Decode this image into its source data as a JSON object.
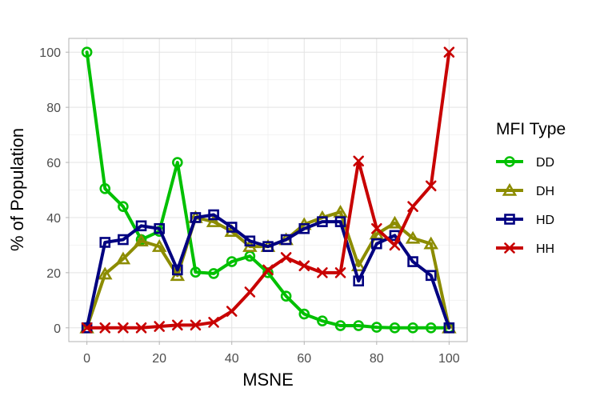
{
  "chart_data": {
    "type": "line",
    "title": "",
    "xlabel": "MSNE",
    "ylabel": "% of Population",
    "xlim": [
      -5,
      105
    ],
    "ylim": [
      -5,
      105
    ],
    "xticks": [
      0,
      20,
      40,
      60,
      80,
      100
    ],
    "yticks": [
      0,
      20,
      40,
      60,
      80,
      100
    ],
    "grid": true,
    "legend_title": "MFI Type",
    "legend_position": "right",
    "x": [
      0,
      5,
      10,
      15,
      20,
      25,
      30,
      35,
      40,
      45,
      50,
      55,
      60,
      65,
      70,
      75,
      80,
      85,
      90,
      95,
      100
    ],
    "series": [
      {
        "name": "DD",
        "color": "#00c000",
        "marker": "circle",
        "values": [
          100,
          50.5,
          44,
          32,
          35,
          60,
          20.2,
          19.7,
          24,
          26,
          20,
          11.5,
          5,
          2.5,
          0.8,
          0.8,
          0.2,
          0,
          0,
          0,
          0
        ]
      },
      {
        "name": "DH",
        "color": "#8c8c00",
        "marker": "triangle",
        "values": [
          0,
          19.5,
          25,
          31.5,
          29.5,
          19,
          40,
          38.5,
          35,
          29.5,
          29.5,
          32,
          37.5,
          40,
          42,
          22.5,
          34,
          38,
          32.5,
          30.5,
          0
        ]
      },
      {
        "name": "HD",
        "color": "#000080",
        "marker": "square",
        "values": [
          0,
          31,
          32,
          37,
          36,
          21,
          40,
          41,
          36.5,
          31.5,
          29.5,
          32,
          36,
          38.5,
          38.5,
          17,
          30.5,
          33.5,
          24,
          19,
          0
        ]
      },
      {
        "name": "HH",
        "color": "#c80000",
        "marker": "x",
        "values": [
          0,
          0,
          0,
          0,
          0.5,
          1,
          1,
          2,
          6,
          13,
          21,
          25.5,
          22.5,
          20,
          20,
          60.5,
          36,
          30,
          44,
          51.5,
          100
        ]
      }
    ]
  }
}
